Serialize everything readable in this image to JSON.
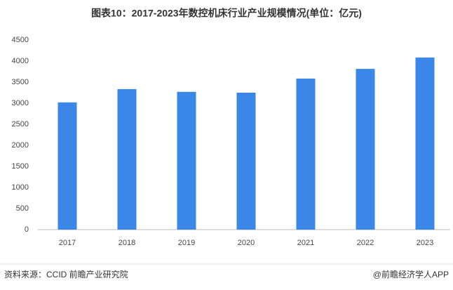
{
  "chart_data": {
    "type": "bar",
    "title": "图表10：2017-2023年数控机床行业产业规模情况(单位：亿元)",
    "categories": [
      "2017",
      "2018",
      "2019",
      "2020",
      "2021",
      "2022",
      "2023"
    ],
    "values": [
      3020,
      3335,
      3270,
      3250,
      3585,
      3815,
      4085
    ],
    "color": "#3a87e8",
    "ylim": [
      0,
      4500
    ],
    "yticks": [
      0,
      500,
      1000,
      1500,
      2000,
      2500,
      3000,
      3500,
      4000,
      4500
    ],
    "grid": false,
    "source": "资料来源：CCID 前瞻产业研究院",
    "credit": "@前瞻经济学人APP"
  }
}
